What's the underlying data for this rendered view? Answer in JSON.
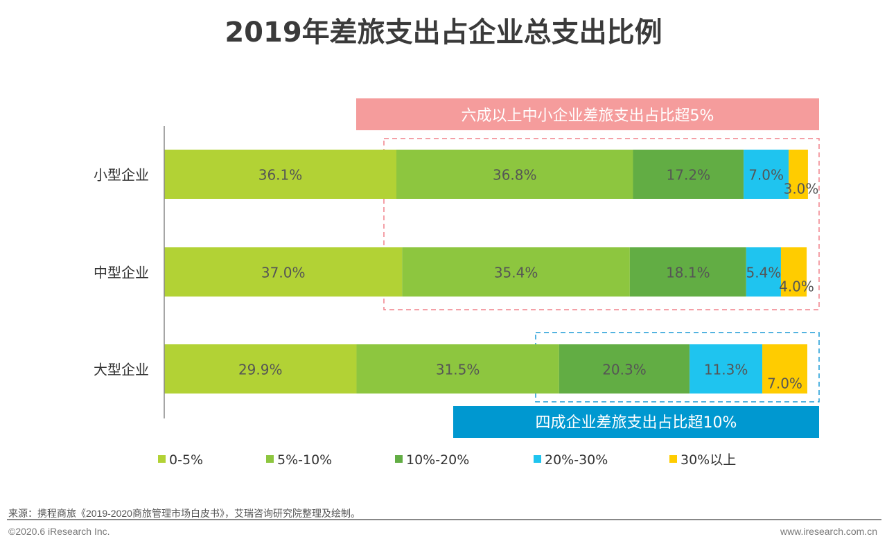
{
  "title": "2019年差旅支出占企业总支出比例",
  "chart_data": {
    "type": "bar",
    "orientation": "horizontal",
    "stacked": true,
    "categories": [
      "小型企业",
      "中型企业",
      "大型企业"
    ],
    "series": [
      {
        "name": "0-5%",
        "color": "#b2d235",
        "values": [
          36.1,
          37.0,
          29.9
        ]
      },
      {
        "name": "5%-10%",
        "color": "#8dc63f",
        "values": [
          36.8,
          35.4,
          31.5
        ]
      },
      {
        "name": "10%-20%",
        "color": "#62ad44",
        "values": [
          17.2,
          18.1,
          20.3
        ]
      },
      {
        "name": "20%-30%",
        "color": "#1fc4ef",
        "values": [
          7.0,
          5.4,
          11.3
        ]
      },
      {
        "name": "30%以上",
        "color": "#ffcc00",
        "values": [
          3.0,
          4.0,
          7.0
        ]
      }
    ],
    "legend": "bottom",
    "annotations": [
      {
        "text": "六成以上中小企业差旅支出占比超5%",
        "color": "#f59c9c"
      },
      {
        "text": "四成企业差旅支出占比超10%",
        "color": "#0098d0"
      }
    ]
  },
  "footer": {
    "source": "来源：携程商旅《2019-2020商旅管理市场白皮书》，艾瑞咨询研究院整理及绘制。",
    "copyright": "©2020.6 iResearch Inc.",
    "site": "www.iresearch.com.cn"
  }
}
